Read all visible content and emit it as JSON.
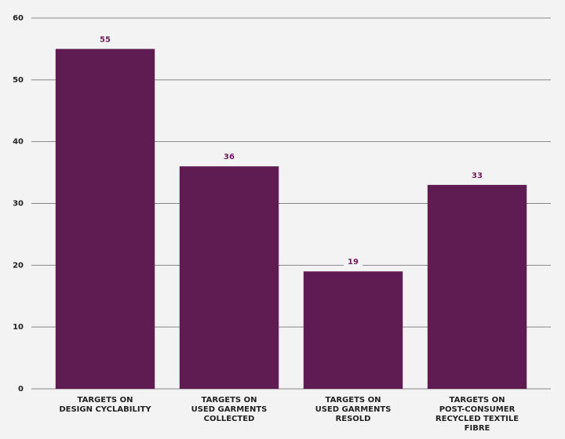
{
  "chart_data": {
    "type": "bar",
    "categories": [
      [
        "TARGETS ON",
        "DESIGN CYCLABILITY"
      ],
      [
        "TARGETS ON",
        "USED GARMENTS",
        "COLLECTED"
      ],
      [
        "TARGETS ON",
        "USED GARMENTS",
        "RESOLD"
      ],
      [
        "TARGETS ON",
        "POST-CONSUMER",
        "RECYCLED TEXTILE",
        "FIBRE"
      ]
    ],
    "values": [
      55,
      36,
      19,
      33
    ],
    "color": "#5e1c52",
    "ylim": [
      0,
      60
    ],
    "yticks": [
      0,
      10,
      20,
      30,
      40,
      50,
      60
    ],
    "grid": true
  }
}
